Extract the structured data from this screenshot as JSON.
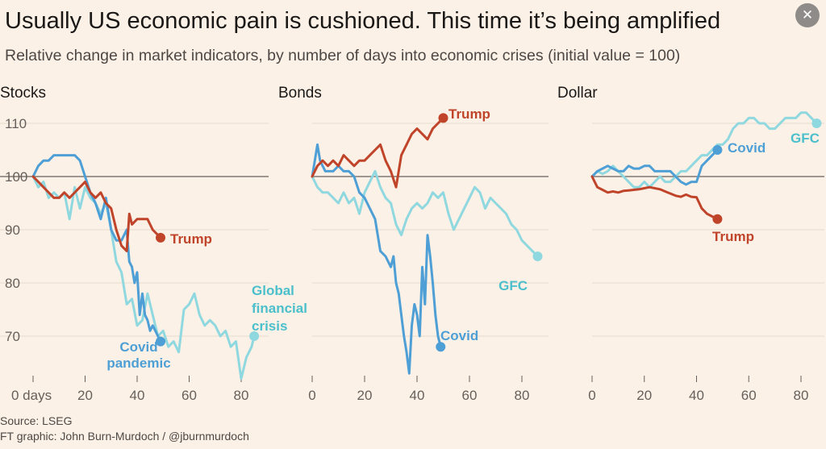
{
  "title": "Usually US economic pain is cushioned. This time it’s being amplified",
  "subtitle": "Relative change in market indicators, by number of days into economic crises (initial value = 100)",
  "close_icon": "✕",
  "source": "Source: LSEG",
  "credit": "FT graphic: John Burn-Murdoch / @jburnmurdoch",
  "colors": {
    "trump": "#c0442a",
    "covid": "#4e9fd6",
    "gfc": "#8fd8e0",
    "grid": "#e6dbcf",
    "baseline": "#66605c",
    "axis_text": "#66605c",
    "background": "#fcf1e6"
  },
  "chart_data": [
    {
      "type": "line",
      "panel_title": "Stocks",
      "xlim": [
        0,
        90
      ],
      "ylim": [
        64,
        113
      ],
      "yticks": [
        70,
        80,
        90,
        100,
        110
      ],
      "xticks": [
        0,
        20,
        40,
        60,
        80
      ],
      "xtick_labels": [
        "0 days",
        "20",
        "40",
        "60",
        "80"
      ],
      "baseline": 100,
      "series": [
        {
          "key": "gfc",
          "color": "#8fd8e0",
          "label_lines": [
            "Global",
            "financial",
            "crisis"
          ],
          "x": [
            0,
            2,
            4,
            6,
            8,
            10,
            12,
            14,
            16,
            18,
            20,
            22,
            24,
            26,
            28,
            30,
            32,
            34,
            36,
            38,
            40,
            42,
            44,
            46,
            48,
            50,
            52,
            54,
            56,
            58,
            60,
            62,
            64,
            66,
            68,
            70,
            72,
            74,
            76,
            78,
            80,
            82,
            84,
            85
          ],
          "y": [
            100,
            98,
            99,
            96,
            97,
            96,
            97,
            92,
            98,
            94,
            98,
            96,
            95,
            93,
            95,
            90,
            84,
            82,
            76,
            77,
            72,
            73,
            78,
            74,
            70,
            71,
            68,
            69,
            67,
            75,
            76,
            78,
            74,
            72,
            73,
            72,
            70,
            71,
            68,
            69,
            62,
            66,
            68,
            70
          ]
        },
        {
          "key": "covid",
          "color": "#4e9fd6",
          "label_lines": [
            "Covid",
            "pandemic"
          ],
          "x": [
            0,
            2,
            4,
            6,
            8,
            10,
            12,
            14,
            16,
            18,
            20,
            22,
            24,
            26,
            28,
            30,
            32,
            34,
            36,
            37,
            38,
            39,
            40,
            41,
            42,
            43,
            44,
            45,
            46,
            47,
            48,
            49
          ],
          "y": [
            100,
            102,
            103,
            103,
            104,
            104,
            104,
            104,
            104,
            103,
            100,
            97,
            95,
            92,
            96,
            90,
            88,
            88,
            90,
            84,
            83,
            80,
            82,
            74,
            78,
            74,
            73,
            71,
            72,
            71,
            70,
            69
          ]
        },
        {
          "key": "trump",
          "color": "#c0442a",
          "label_lines": [
            "Trump"
          ],
          "x": [
            0,
            2,
            4,
            6,
            8,
            10,
            12,
            14,
            16,
            18,
            20,
            22,
            24,
            26,
            28,
            30,
            32,
            34,
            36,
            37,
            38,
            40,
            42,
            44,
            46,
            48,
            49
          ],
          "y": [
            100,
            99,
            98,
            97,
            96,
            96,
            97,
            96,
            97,
            98,
            99,
            97,
            96,
            97,
            95,
            94,
            90,
            87,
            86,
            93,
            91,
            92,
            92,
            92,
            90,
            89,
            88.5
          ]
        }
      ]
    },
    {
      "type": "line",
      "panel_title": "Bonds",
      "xlim": [
        0,
        90
      ],
      "ylim": [
        64,
        113
      ],
      "xticks": [
        0,
        20,
        40,
        60,
        80
      ],
      "xtick_labels": [
        "0",
        "20",
        "40",
        "60",
        "80"
      ],
      "baseline": 100,
      "series": [
        {
          "key": "gfc",
          "color": "#8fd8e0",
          "label_lines": [
            "GFC"
          ],
          "x": [
            0,
            2,
            4,
            6,
            8,
            10,
            12,
            14,
            16,
            18,
            20,
            22,
            24,
            26,
            28,
            30,
            32,
            34,
            36,
            38,
            40,
            42,
            44,
            46,
            48,
            50,
            52,
            54,
            56,
            58,
            60,
            62,
            64,
            66,
            68,
            70,
            72,
            74,
            76,
            78,
            80,
            82,
            84,
            86
          ],
          "y": [
            100,
            98,
            97,
            97,
            96,
            95,
            97,
            95,
            96,
            93,
            97,
            99,
            101,
            98,
            96,
            95,
            91,
            89,
            92,
            94,
            95,
            94,
            95,
            97,
            96,
            97,
            93,
            90,
            92,
            94,
            96,
            98,
            97,
            94,
            96,
            95,
            94,
            93,
            91,
            90,
            88,
            87,
            86,
            85
          ]
        },
        {
          "key": "covid",
          "color": "#4e9fd6",
          "label_lines": [
            "Covid"
          ],
          "x": [
            0,
            1,
            2,
            3,
            4,
            5,
            6,
            8,
            10,
            12,
            14,
            16,
            18,
            20,
            22,
            24,
            26,
            28,
            30,
            31,
            32,
            33,
            34,
            35,
            36,
            37,
            38,
            39,
            40,
            41,
            42,
            43,
            44,
            45,
            46,
            47,
            48,
            49
          ],
          "y": [
            100,
            103,
            106,
            103,
            102,
            101,
            101,
            101,
            102,
            101,
            101,
            100,
            97,
            96,
            94,
            92,
            86,
            85,
            83,
            85,
            80,
            78,
            74,
            70,
            67,
            63,
            72,
            76,
            74,
            70,
            83,
            76,
            89,
            85,
            80,
            74,
            70,
            68
          ]
        },
        {
          "key": "trump",
          "color": "#c0442a",
          "label_lines": [
            "Trump"
          ],
          "x": [
            0,
            2,
            4,
            6,
            8,
            10,
            12,
            14,
            16,
            18,
            20,
            22,
            24,
            26,
            28,
            30,
            32,
            34,
            36,
            38,
            40,
            42,
            44,
            46,
            48,
            50
          ],
          "y": [
            100,
            102,
            103,
            102,
            103,
            102,
            104,
            103,
            102,
            103,
            103,
            104,
            105,
            106,
            103,
            101,
            98,
            104,
            106,
            108,
            109,
            108,
            107,
            109,
            110,
            111
          ]
        }
      ]
    },
    {
      "type": "line",
      "panel_title": "Dollar",
      "xlim": [
        0,
        90
      ],
      "ylim": [
        64,
        113
      ],
      "xticks": [
        0,
        20,
        40,
        60,
        80
      ],
      "xtick_labels": [
        "0",
        "20",
        "40",
        "60",
        "80"
      ],
      "baseline": 100,
      "series": [
        {
          "key": "gfc",
          "color": "#8fd8e0",
          "label_lines": [
            "GFC"
          ],
          "x": [
            0,
            2,
            4,
            6,
            8,
            10,
            12,
            14,
            16,
            18,
            20,
            22,
            24,
            26,
            28,
            30,
            32,
            34,
            36,
            38,
            40,
            42,
            44,
            46,
            48,
            50,
            52,
            54,
            56,
            58,
            60,
            62,
            64,
            66,
            68,
            70,
            72,
            74,
            76,
            78,
            80,
            82,
            84,
            86
          ],
          "y": [
            100,
            101,
            100.5,
            101,
            102,
            101,
            100,
            99,
            98,
            98,
            99,
            98,
            99,
            100,
            99,
            99,
            100,
            101,
            101,
            102,
            103,
            104,
            104,
            105,
            106,
            106,
            107,
            109,
            110,
            110,
            111,
            111,
            110,
            110,
            109,
            109,
            110,
            111,
            111,
            111,
            112,
            112,
            111,
            110
          ]
        },
        {
          "key": "covid",
          "color": "#4e9fd6",
          "label_lines": [
            "Covid"
          ],
          "x": [
            0,
            2,
            4,
            6,
            8,
            10,
            12,
            14,
            16,
            18,
            20,
            22,
            24,
            26,
            28,
            30,
            32,
            34,
            36,
            38,
            40,
            42,
            44,
            46,
            48
          ],
          "y": [
            100,
            101,
            101.5,
            102,
            101.5,
            101,
            101,
            102,
            101.5,
            101.5,
            102,
            102,
            101,
            101,
            101,
            101,
            100,
            99,
            98.5,
            99,
            99,
            102,
            103,
            104,
            105
          ]
        },
        {
          "key": "trump",
          "color": "#c0442a",
          "label_lines": [
            "Trump"
          ],
          "x": [
            0,
            2,
            4,
            6,
            8,
            10,
            12,
            14,
            16,
            18,
            20,
            22,
            24,
            26,
            28,
            30,
            32,
            34,
            36,
            38,
            40,
            42,
            44,
            46,
            48
          ],
          "y": [
            100,
            98,
            97.5,
            97,
            97.2,
            97,
            97.3,
            97.4,
            97.5,
            97.6,
            97.8,
            98,
            97.8,
            97.6,
            97.2,
            96.8,
            96.4,
            96.2,
            96.6,
            96.2,
            96.1,
            94,
            93,
            92.5,
            92
          ]
        }
      ]
    }
  ]
}
